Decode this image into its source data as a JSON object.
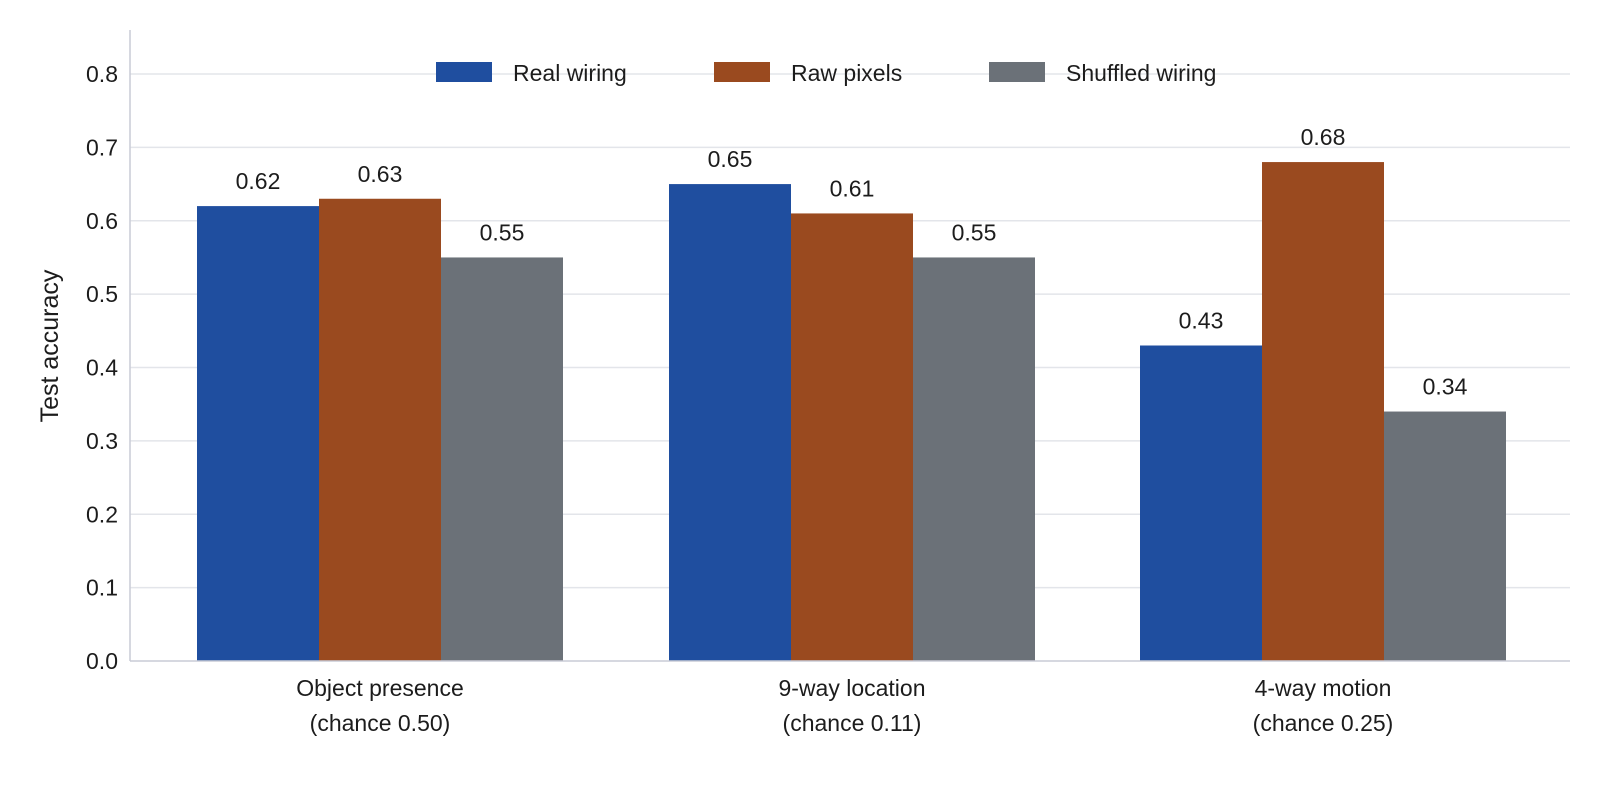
{
  "chart_data": {
    "type": "bar",
    "categories": [
      [
        "Object presence",
        "(chance 0.50)"
      ],
      [
        "9-way location",
        "(chance 0.11)"
      ],
      [
        "4-way motion",
        "(chance 0.25)"
      ]
    ],
    "series": [
      {
        "name": "Real wiring",
        "color": "#1f4e9f",
        "values": [
          0.62,
          0.65,
          0.43
        ],
        "labels": [
          "0.62",
          "0.65",
          "0.43"
        ]
      },
      {
        "name": "Raw pixels",
        "color": "#9a4a1f",
        "values": [
          0.63,
          0.61,
          0.68
        ],
        "labels": [
          "0.63",
          "0.61",
          "0.68"
        ]
      },
      {
        "name": "Shuffled wiring",
        "color": "#6b7178",
        "values": [
          0.55,
          0.55,
          0.34
        ],
        "labels": [
          "0.55",
          "0.55",
          "0.34"
        ]
      }
    ],
    "xlabel": "",
    "ylabel": "Test accuracy",
    "ylim": [
      0,
      0.86
    ],
    "yticks": [
      "0.0",
      "0.1",
      "0.2",
      "0.3",
      "0.4",
      "0.5",
      "0.6",
      "0.7",
      "0.8"
    ],
    "grid": true,
    "legend_position": "top-center"
  }
}
